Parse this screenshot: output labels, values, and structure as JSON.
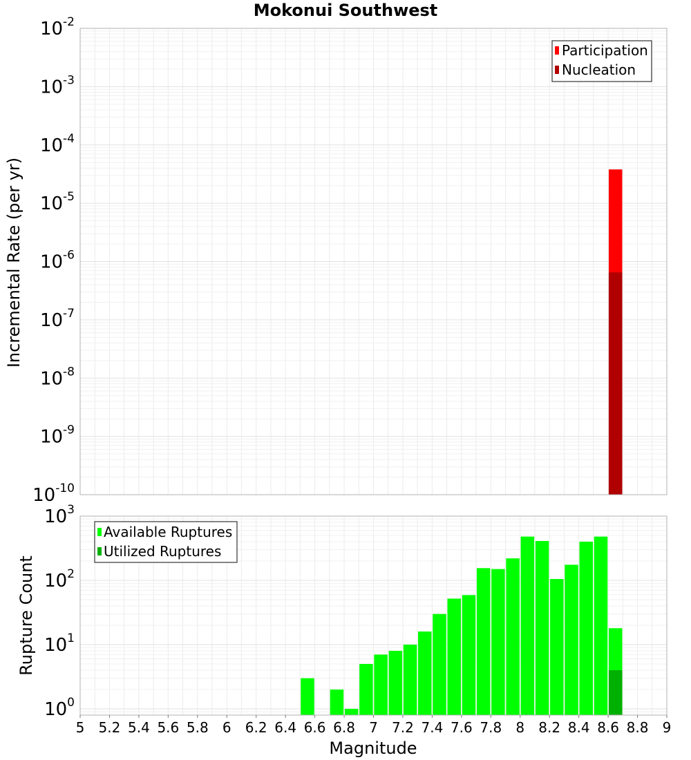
{
  "chart_data": [
    {
      "type": "bar",
      "panel": "top",
      "title": "Mokonui Southwest",
      "xlabel": "",
      "ylabel": "Incremental Rate (per yr)",
      "yscale": "log",
      "ylim": [
        1e-10,
        0.01
      ],
      "xlim": [
        5,
        9
      ],
      "y_tick_labels": [
        {
          "base": "10",
          "exp": "-10",
          "value": 1e-10
        },
        {
          "base": "10",
          "exp": "-9",
          "value": 1e-09
        },
        {
          "base": "10",
          "exp": "-8",
          "value": 1e-08
        },
        {
          "base": "10",
          "exp": "-7",
          "value": 1e-07
        },
        {
          "base": "10",
          "exp": "-6",
          "value": 1e-06
        },
        {
          "base": "10",
          "exp": "-5",
          "value": 1e-05
        },
        {
          "base": "10",
          "exp": "-4",
          "value": 0.0001
        },
        {
          "base": "10",
          "exp": "-3",
          "value": 0.001
        },
        {
          "base": "10",
          "exp": "-2",
          "value": 0.01
        }
      ],
      "legend_position": "top-right",
      "series": [
        {
          "name": "Participation",
          "color": "#ff0000",
          "x": [
            8.65
          ],
          "values": [
            3.8e-05
          ]
        },
        {
          "name": "Nucleation",
          "color": "#b00000",
          "x": [
            8.65
          ],
          "values": [
            6.5e-07
          ]
        }
      ]
    },
    {
      "type": "bar",
      "panel": "bottom",
      "title": "",
      "xlabel": "Magnitude",
      "ylabel": "Rupture Count",
      "yscale": "log",
      "ylim": [
        0.8,
        1000
      ],
      "xlim": [
        5,
        9
      ],
      "x_tick_labels": [
        "5",
        "5.2",
        "5.4",
        "5.6",
        "5.8",
        "6",
        "6.2",
        "6.4",
        "6.6",
        "6.8",
        "7",
        "7.2",
        "7.4",
        "7.6",
        "7.8",
        "8",
        "8.2",
        "8.4",
        "8.6",
        "8.8",
        "9"
      ],
      "y_tick_labels": [
        {
          "base": "10",
          "exp": "0",
          "value": 1
        },
        {
          "base": "10",
          "exp": "1",
          "value": 10
        },
        {
          "base": "10",
          "exp": "2",
          "value": 100
        },
        {
          "base": "10",
          "exp": "3",
          "value": 1000
        }
      ],
      "legend_position": "top-left",
      "series": [
        {
          "name": "Available Ruptures",
          "color": "#00ff00",
          "x": [
            6.55,
            6.75,
            6.85,
            6.95,
            7.05,
            7.15,
            7.25,
            7.35,
            7.45,
            7.55,
            7.65,
            7.75,
            7.85,
            7.95,
            8.05,
            8.15,
            8.25,
            8.35,
            8.45,
            8.55,
            8.65
          ],
          "values": [
            3,
            2,
            1,
            5,
            7,
            8,
            10,
            16,
            30,
            52,
            59,
            155,
            150,
            220,
            480,
            410,
            105,
            175,
            400,
            480,
            18
          ]
        },
        {
          "name": "Utilized Ruptures",
          "color": "#00b000",
          "x": [
            8.65
          ],
          "values": [
            4
          ]
        }
      ]
    }
  ]
}
